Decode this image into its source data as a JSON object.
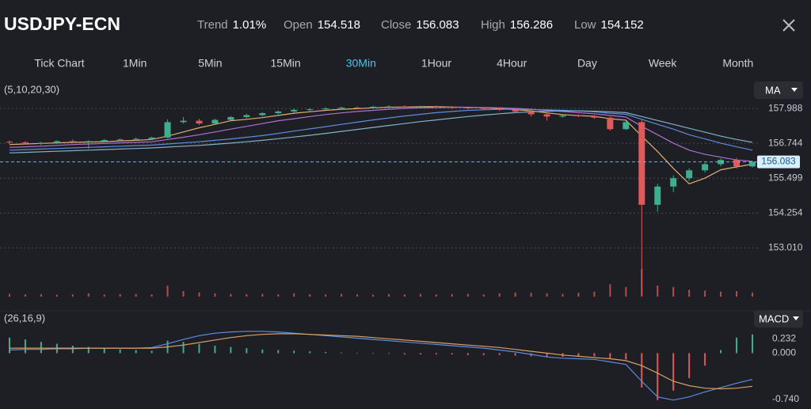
{
  "header": {
    "title": "USDJPY-ECN",
    "stats": [
      {
        "label": "Trend",
        "value": "1.01%"
      },
      {
        "label": "Open",
        "value": "154.518"
      },
      {
        "label": "Close",
        "value": "156.083"
      },
      {
        "label": "High",
        "value": "156.286"
      },
      {
        "label": "Low",
        "value": "154.152"
      }
    ]
  },
  "tabs": {
    "items": [
      "Tick Chart",
      "1Min",
      "5Min",
      "15Min",
      "30Min",
      "1Hour",
      "4Hour",
      "Day",
      "Week",
      "Month"
    ],
    "active": 4
  },
  "chart_data": [
    {
      "type": "candlestick",
      "indicator_params": "(5,10,20,30)",
      "indicator": "MA",
      "up_color": "#3fae8c",
      "down_color": "#e05a5a",
      "open": [
        156.8,
        156.78,
        156.75,
        156.76,
        156.82,
        156.8,
        156.82,
        156.86,
        156.88,
        156.9,
        156.95,
        157.5,
        157.55,
        157.45,
        157.58,
        157.68,
        157.75,
        157.82,
        157.88,
        157.94,
        157.96,
        157.99,
        158.02,
        158.0,
        158.05,
        158.06,
        158.04,
        158.05,
        158.03,
        158.02,
        158.0,
        157.98,
        157.94,
        157.88,
        157.78,
        157.7,
        157.74,
        157.71,
        157.66,
        157.25,
        157.5,
        154.55,
        155.2,
        155.5,
        155.78,
        156.0,
        156.15,
        155.92
      ],
      "high": [
        156.85,
        156.82,
        156.8,
        156.85,
        156.88,
        156.85,
        156.9,
        156.92,
        156.95,
        156.98,
        157.6,
        157.68,
        157.62,
        157.62,
        157.72,
        157.8,
        157.85,
        157.92,
        157.98,
        158.0,
        158.03,
        158.05,
        158.06,
        158.08,
        158.1,
        158.1,
        158.08,
        158.09,
        158.07,
        158.06,
        158.04,
        158.02,
        157.98,
        157.92,
        157.82,
        157.78,
        157.78,
        157.75,
        157.7,
        157.55,
        157.58,
        155.3,
        155.6,
        155.85,
        156.05,
        156.2,
        156.22,
        156.12
      ],
      "low": [
        156.72,
        156.7,
        156.68,
        156.72,
        156.78,
        156.55,
        156.78,
        156.82,
        156.84,
        156.86,
        156.92,
        157.45,
        157.4,
        157.42,
        157.55,
        157.64,
        157.7,
        157.78,
        157.84,
        157.88,
        157.92,
        157.94,
        157.96,
        157.97,
        158.0,
        158.01,
        157.99,
        158.0,
        157.98,
        157.96,
        157.95,
        157.9,
        157.85,
        157.7,
        157.55,
        157.66,
        157.68,
        157.62,
        157.2,
        157.22,
        151.3,
        154.3,
        155.0,
        155.4,
        155.7,
        155.92,
        155.85,
        155.88
      ],
      "close": [
        156.78,
        156.75,
        156.76,
        156.82,
        156.8,
        156.82,
        156.86,
        156.88,
        156.9,
        156.95,
        157.5,
        157.55,
        157.45,
        157.58,
        157.68,
        157.75,
        157.82,
        157.88,
        157.94,
        157.96,
        157.99,
        158.02,
        158.0,
        158.05,
        158.06,
        158.04,
        158.05,
        158.03,
        158.02,
        158.0,
        157.98,
        157.94,
        157.88,
        157.78,
        157.7,
        157.74,
        157.71,
        157.66,
        157.25,
        157.5,
        154.55,
        155.2,
        155.5,
        155.78,
        156.0,
        156.15,
        155.92,
        156.083
      ],
      "ma": [
        {
          "color": "#e0b070",
          "values": [
            156.7,
            156.72,
            156.74,
            156.76,
            156.78,
            156.79,
            156.8,
            156.83,
            156.85,
            156.88,
            157.0,
            157.15,
            157.3,
            157.42,
            157.55,
            157.6,
            157.66,
            157.74,
            157.82,
            157.87,
            157.92,
            157.96,
            157.98,
            158.01,
            158.03,
            158.04,
            158.05,
            158.05,
            158.04,
            158.03,
            158.01,
            157.98,
            157.95,
            157.9,
            157.83,
            157.77,
            157.73,
            157.71,
            157.62,
            157.57,
            157.0,
            156.45,
            155.85,
            155.3,
            155.5,
            155.8,
            155.9,
            156.0
          ]
        },
        {
          "color": "#b070d0",
          "values": [
            156.6,
            156.62,
            156.64,
            156.67,
            156.7,
            156.72,
            156.74,
            156.76,
            156.78,
            156.8,
            156.88,
            156.96,
            157.05,
            157.15,
            157.25,
            157.35,
            157.45,
            157.55,
            157.62,
            157.7,
            157.77,
            157.83,
            157.88,
            157.92,
            157.96,
            157.99,
            158.01,
            158.02,
            158.03,
            158.03,
            158.02,
            158.01,
            157.99,
            157.96,
            157.92,
            157.88,
            157.84,
            157.8,
            157.74,
            157.68,
            157.35,
            157.05,
            156.75,
            156.5,
            156.35,
            156.25,
            156.15,
            156.1
          ]
        },
        {
          "color": "#5b8de0",
          "values": [
            156.5,
            156.52,
            156.54,
            156.56,
            156.58,
            156.6,
            156.62,
            156.64,
            156.66,
            156.68,
            156.72,
            156.76,
            156.8,
            156.85,
            156.9,
            156.96,
            157.02,
            157.1,
            157.18,
            157.26,
            157.34,
            157.42,
            157.5,
            157.58,
            157.65,
            157.72,
            157.78,
            157.84,
            157.88,
            157.92,
            157.94,
            157.96,
            157.96,
            157.95,
            157.94,
            157.92,
            157.9,
            157.87,
            157.82,
            157.78,
            157.6,
            157.42,
            157.25,
            157.05,
            156.9,
            156.75,
            156.62,
            156.5
          ]
        },
        {
          "color": "#7fb3c8",
          "values": [
            156.4,
            156.42,
            156.44,
            156.46,
            156.48,
            156.5,
            156.52,
            156.54,
            156.56,
            156.58,
            156.61,
            156.64,
            156.67,
            156.71,
            156.75,
            156.8,
            156.85,
            156.91,
            156.97,
            157.03,
            157.1,
            157.17,
            157.24,
            157.31,
            157.38,
            157.45,
            157.52,
            157.58,
            157.64,
            157.7,
            157.75,
            157.8,
            157.84,
            157.87,
            157.89,
            157.9,
            157.9,
            157.89,
            157.87,
            157.84,
            157.7,
            157.56,
            157.42,
            157.28,
            157.14,
            157.0,
            156.88,
            156.78
          ]
        }
      ],
      "volume": {
        "color": "#b94a4a",
        "vlim": [
          0,
          100
        ],
        "values": [
          10,
          8,
          9,
          7,
          8,
          12,
          8,
          9,
          10,
          8,
          40,
          20,
          15,
          12,
          10,
          9,
          10,
          8,
          12,
          9,
          8,
          10,
          8,
          7,
          9,
          8,
          10,
          8,
          9,
          10,
          8,
          12,
          15,
          14,
          12,
          10,
          14,
          18,
          45,
          35,
          100,
          40,
          35,
          25,
          22,
          18,
          20,
          15
        ]
      },
      "last_price": 156.083,
      "ylim": [
        151.27,
        158.33
      ],
      "yticks": [
        157.988,
        156.744,
        155.499,
        154.254,
        {
          "value": 153.01,
          "label": "153.010"
        }
      ],
      "grid": true
    },
    {
      "type": "macd",
      "indicator_params": "(26,16,9)",
      "indicator": "MACD",
      "histogram": {
        "up_color": "#3fae8c",
        "down_color": "#e05a5a",
        "values": [
          0.25,
          0.22,
          0.18,
          0.15,
          0.12,
          0.1,
          0.08,
          0.06,
          0.05,
          0.04,
          0.2,
          0.18,
          0.15,
          0.12,
          0.1,
          0.08,
          0.06,
          0.05,
          0.04,
          0.03,
          0.02,
          0.01,
          0.0,
          -0.01,
          -0.01,
          -0.02,
          -0.02,
          -0.02,
          -0.02,
          -0.03,
          -0.03,
          -0.03,
          -0.04,
          -0.05,
          -0.06,
          -0.06,
          -0.05,
          -0.05,
          -0.08,
          -0.1,
          -0.55,
          -0.75,
          -0.6,
          -0.4,
          -0.2,
          0.05,
          0.25,
          0.3
        ]
      },
      "series": [
        {
          "color": "#5b8de0",
          "values": [
            0.05,
            0.06,
            0.06,
            0.07,
            0.07,
            0.08,
            0.08,
            0.08,
            0.08,
            0.09,
            0.15,
            0.22,
            0.28,
            0.32,
            0.34,
            0.35,
            0.35,
            0.34,
            0.32,
            0.3,
            0.28,
            0.26,
            0.24,
            0.22,
            0.2,
            0.18,
            0.16,
            0.14,
            0.12,
            0.1,
            0.08,
            0.05,
            0.02,
            -0.02,
            -0.06,
            -0.08,
            -0.09,
            -0.1,
            -0.14,
            -0.18,
            -0.45,
            -0.7,
            -0.75,
            -0.7,
            -0.62,
            -0.55,
            -0.48,
            -0.42
          ]
        },
        {
          "color": "#d9a066",
          "values": [
            0.08,
            0.08,
            0.08,
            0.08,
            0.08,
            0.08,
            0.08,
            0.08,
            0.08,
            0.08,
            0.1,
            0.13,
            0.17,
            0.21,
            0.25,
            0.28,
            0.3,
            0.31,
            0.31,
            0.3,
            0.29,
            0.28,
            0.27,
            0.25,
            0.23,
            0.21,
            0.19,
            0.17,
            0.15,
            0.13,
            0.11,
            0.09,
            0.06,
            0.03,
            0.0,
            -0.03,
            -0.05,
            -0.07,
            -0.09,
            -0.12,
            -0.2,
            -0.32,
            -0.45,
            -0.52,
            -0.56,
            -0.57,
            -0.56,
            -0.53
          ]
        }
      ],
      "ylim": [
        -0.83,
        0.36
      ],
      "yticks": [
        0.232,
        {
          "value": 0,
          "label": "0.000"
        },
        {
          "value": -0.74,
          "label": "-0.740"
        }
      ],
      "grid": false
    }
  ]
}
